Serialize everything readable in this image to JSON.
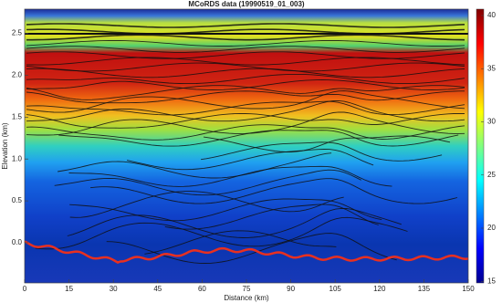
{
  "chart_data": {
    "type": "heatmap",
    "title": "MCoRDS data (19990519_01_003)",
    "x_label": "Distance (km)",
    "y_label": "Elevation (km)",
    "xlim": [
      0,
      150
    ],
    "xticks": [
      0,
      15,
      30,
      45,
      60,
      75,
      90,
      105,
      120,
      135,
      150
    ],
    "ylim": [
      -0.48,
      2.79
    ],
    "yticks": [
      {
        "value": 0,
        "label": "0.0"
      },
      0.5,
      {
        "value": 1,
        "label": "1.0"
      },
      1.5,
      {
        "value": 2,
        "label": "2.0"
      },
      2.5
    ],
    "colorbar": {
      "lim": [
        14.85,
        40.6
      ],
      "ticks": [
        15,
        20,
        25,
        30,
        35,
        40
      ]
    }
  }
}
